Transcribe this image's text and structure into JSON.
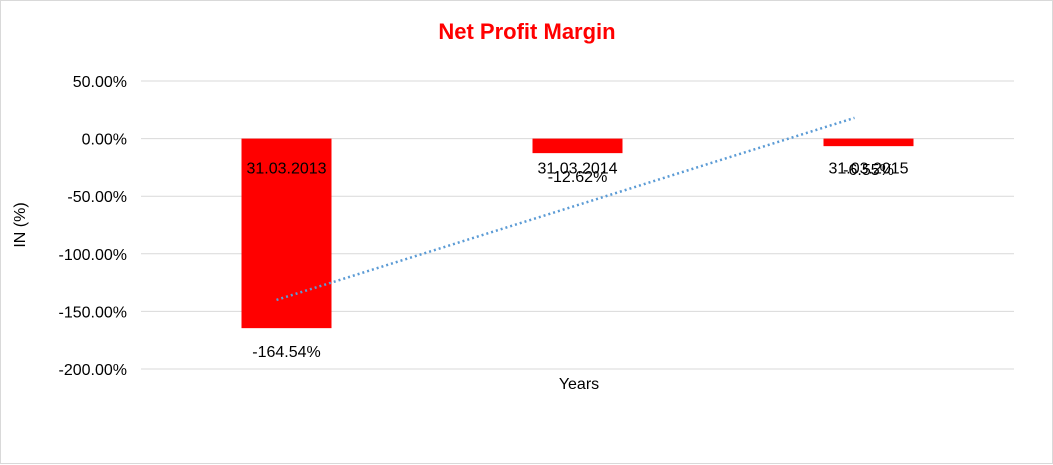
{
  "chart_data": {
    "type": "bar",
    "title": "Net Profit Margin",
    "xlabel": "Years",
    "ylabel": "IN (%)",
    "categories": [
      "31.03.2013",
      "31.03.2014",
      "31.03.2015"
    ],
    "series": [
      {
        "values": [
          -164.54,
          -12.62,
          -6.55
        ],
        "labels": [
          "-164.54%",
          "-12.62%",
          "-6.55%"
        ],
        "color": "#ff0000"
      }
    ],
    "trendline": {
      "type": "linear",
      "style": "dotted",
      "color": "#5b9bd5",
      "start": -140,
      "end": 18
    },
    "ylim": [
      -200,
      50
    ],
    "yticks": [
      50,
      0,
      -50,
      -100,
      -150,
      -200
    ],
    "ytick_labels": [
      "50.00%",
      "0.00%",
      "-50.00%",
      "-100.00%",
      "-150.00%",
      "-200.00%"
    ],
    "grid": true,
    "title_color": "#ff0000",
    "gridline_color": "#d9d9d9"
  }
}
